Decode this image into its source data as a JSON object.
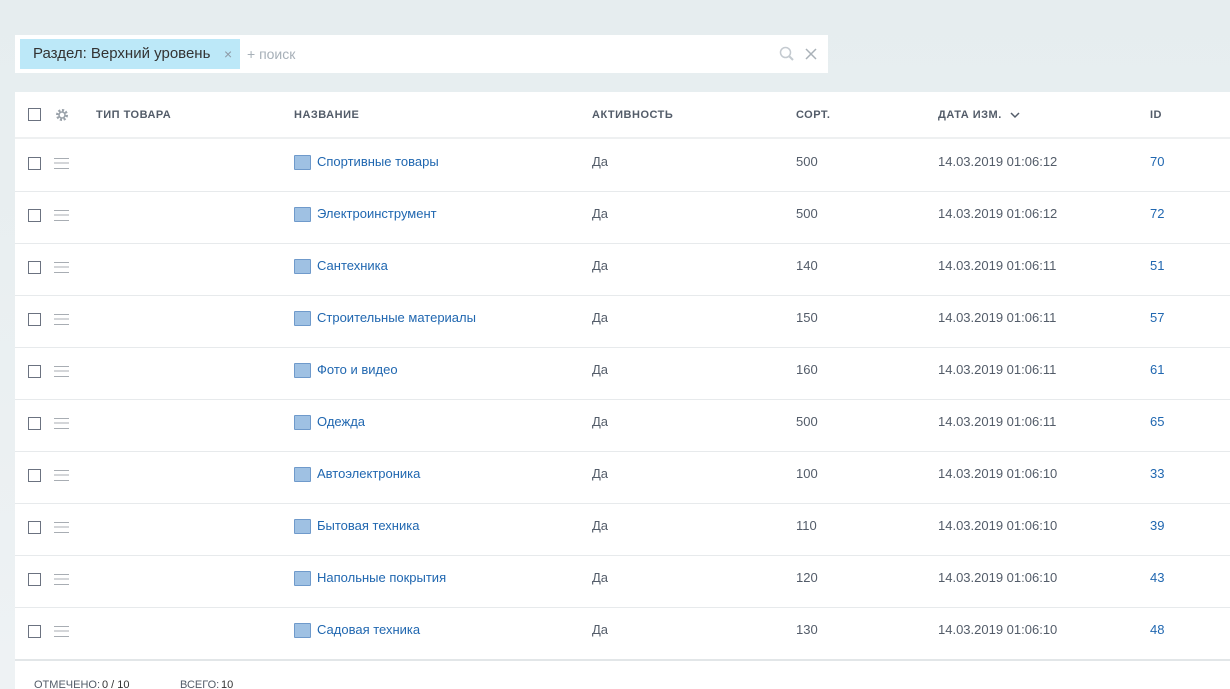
{
  "filter": {
    "tag": "Раздел: Верхний уровень",
    "placeholder": "+ поиск"
  },
  "table": {
    "headers": [
      "ТИП ТОВАРА",
      "НАЗВАНИЕ",
      "АКТИВНОСТЬ",
      "СОРТ.",
      "ДАТА ИЗМ.",
      "ID"
    ],
    "rows": [
      [
        "Спортивные товары",
        "Да",
        500,
        "14.03.2019 01:06:12",
        70
      ],
      [
        "Электроинструмент",
        "Да",
        500,
        "14.03.2019 01:06:12",
        72
      ],
      [
        "Сантехника",
        "Да",
        140,
        "14.03.2019 01:06:11",
        51
      ],
      [
        "Строительные материалы",
        "Да",
        150,
        "14.03.2019 01:06:11",
        57
      ],
      [
        "Фото и видео",
        "Да",
        160,
        "14.03.2019 01:06:11",
        61
      ],
      [
        "Одежда",
        "Да",
        500,
        "14.03.2019 01:06:11",
        65
      ],
      [
        "Автоэлектроника",
        "Да",
        100,
        "14.03.2019 01:06:10",
        33
      ],
      [
        "Бытовая техника",
        "Да",
        110,
        "14.03.2019 01:06:10",
        39
      ],
      [
        "Напольные покрытия",
        "Да",
        120,
        "14.03.2019 01:06:10",
        43
      ],
      [
        "Садовая техника",
        "Да",
        130,
        "14.03.2019 01:06:10",
        48
      ]
    ]
  },
  "footer": {
    "selected_label": "ОТМЕЧЕНО:",
    "selected_value": "0 / 10",
    "total_label": "ВСЕГО:",
    "total_value": 10
  }
}
